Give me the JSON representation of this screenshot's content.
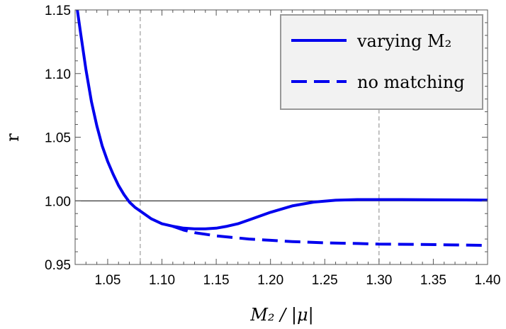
{
  "chart_data": {
    "type": "line",
    "xlabel": "M₂ / |μ|",
    "ylabel": "r",
    "xlim": [
      1.02,
      1.4
    ],
    "ylim": [
      0.95,
      1.15
    ],
    "x_ticks": [
      1.05,
      1.1,
      1.15,
      1.2,
      1.25,
      1.3,
      1.35,
      1.4
    ],
    "y_ticks": [
      0.95,
      1.0,
      1.05,
      1.1,
      1.15
    ],
    "x_tick_labels": [
      "1.05",
      "1.10",
      "1.15",
      "1.20",
      "1.25",
      "1.30",
      "1.35",
      "1.40"
    ],
    "y_tick_labels": [
      "0.95",
      "1.00",
      "1.05",
      "1.10",
      "1.15"
    ],
    "reference_lines": {
      "horizontal": [
        1.0
      ],
      "vertical": [
        1.08,
        1.3
      ]
    },
    "legend_position": "top-right",
    "series": [
      {
        "name": "varying M₂",
        "style": "solid",
        "color": "#0000ee",
        "x": [
          1.022,
          1.025,
          1.03,
          1.035,
          1.04,
          1.045,
          1.05,
          1.055,
          1.06,
          1.065,
          1.07,
          1.075,
          1.08,
          1.09,
          1.1,
          1.11,
          1.12,
          1.13,
          1.14,
          1.15,
          1.16,
          1.17,
          1.18,
          1.2,
          1.22,
          1.24,
          1.26,
          1.28,
          1.3,
          1.32,
          1.35,
          1.38,
          1.4
        ],
        "y": [
          1.15,
          1.132,
          1.103,
          1.078,
          1.059,
          1.043,
          1.031,
          1.021,
          1.012,
          1.005,
          0.999,
          0.995,
          0.992,
          0.986,
          0.982,
          0.98,
          0.9785,
          0.978,
          0.978,
          0.9785,
          0.98,
          0.982,
          0.985,
          0.991,
          0.996,
          0.999,
          1.0005,
          1.001,
          1.001,
          1.001,
          1.0008,
          1.0007,
          1.0006
        ]
      },
      {
        "name": "no matching",
        "style": "dashed",
        "color": "#0000ee",
        "x": [
          1.11,
          1.12,
          1.13,
          1.15,
          1.18,
          1.2,
          1.22,
          1.25,
          1.28,
          1.3,
          1.33,
          1.36,
          1.4
        ],
        "y": [
          0.98,
          0.977,
          0.975,
          0.9725,
          0.97,
          0.969,
          0.968,
          0.967,
          0.9665,
          0.966,
          0.9658,
          0.9655,
          0.965
        ]
      }
    ]
  }
}
